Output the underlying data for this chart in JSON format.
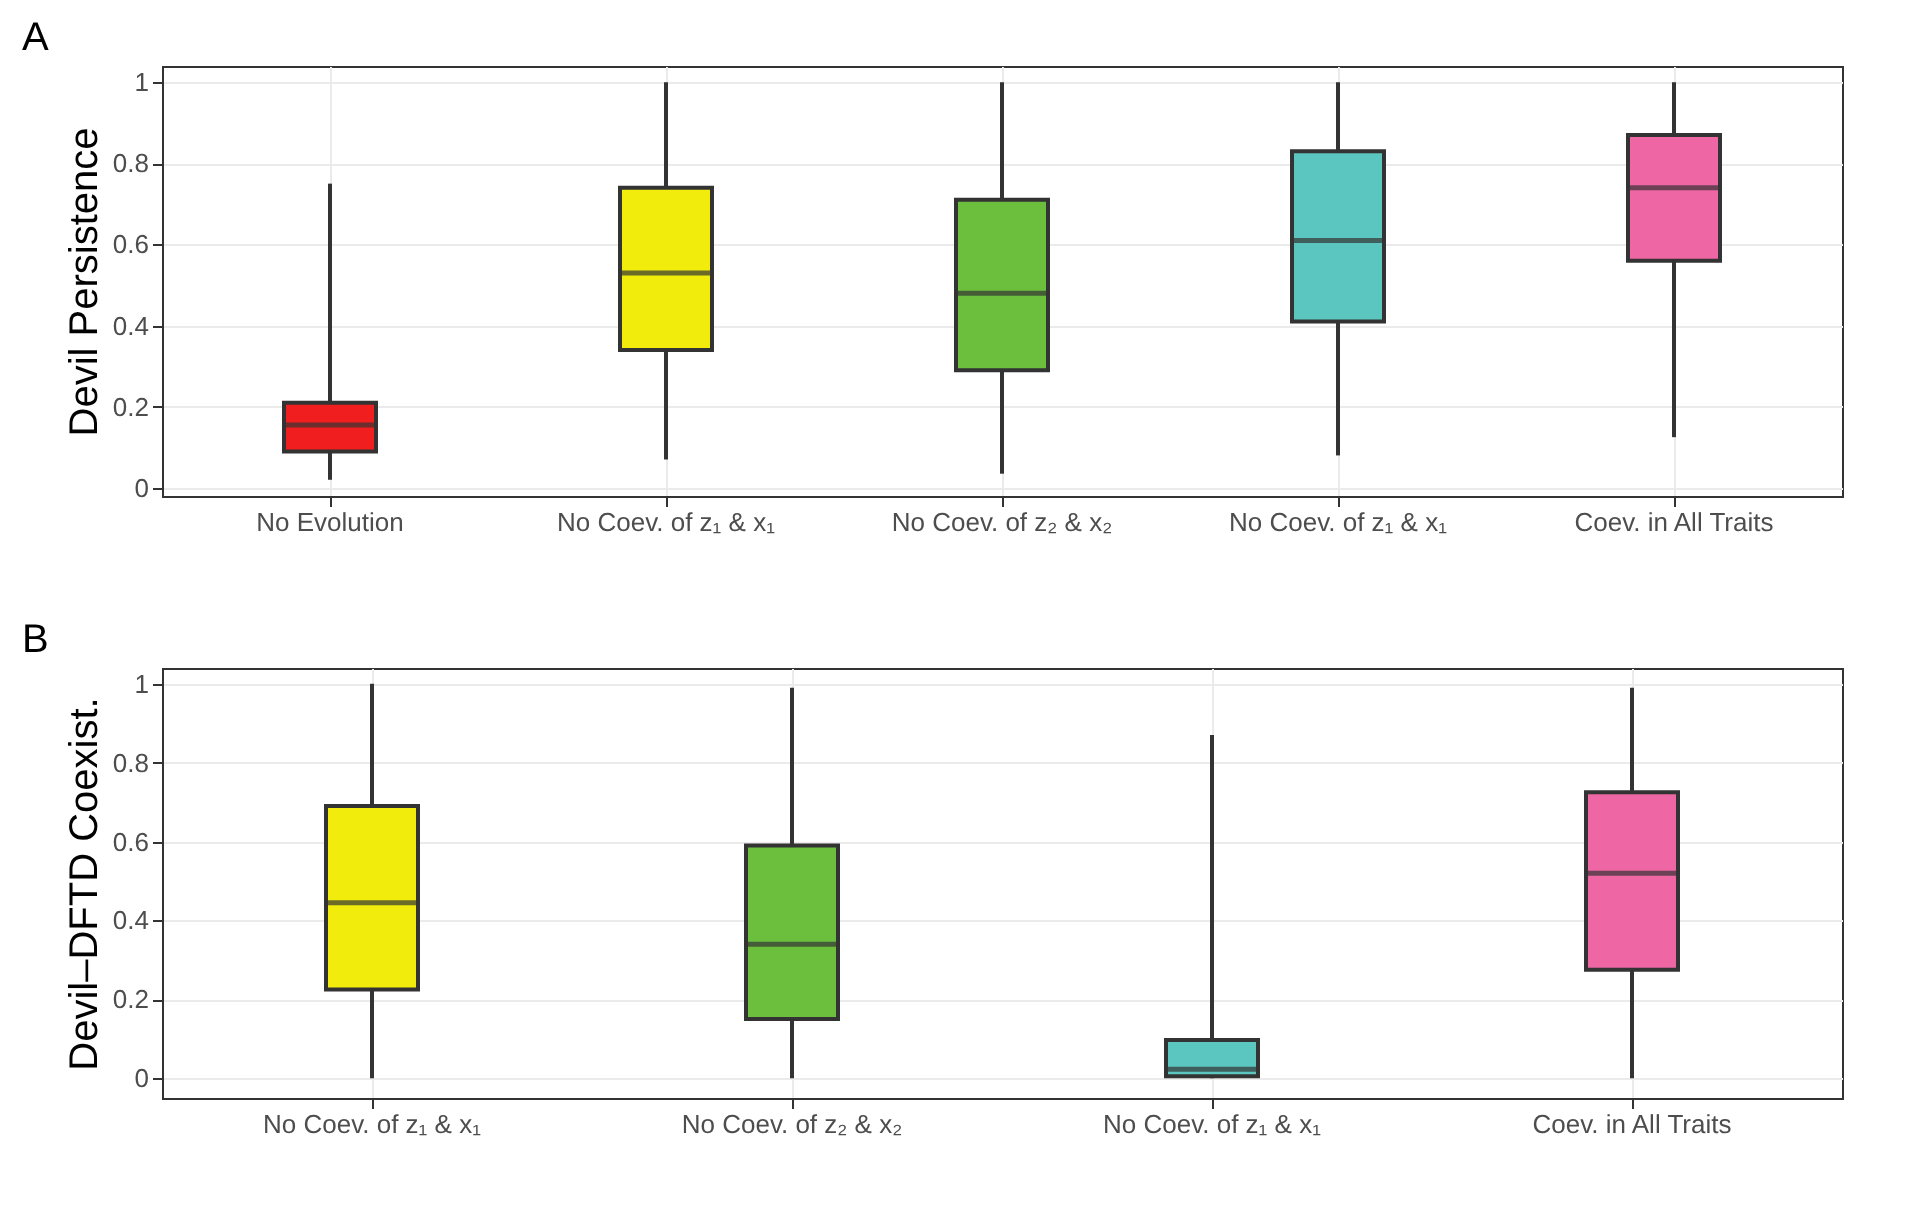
{
  "chart_data": [
    {
      "type": "box",
      "title": "A",
      "ylabel": "Devil Persistence",
      "categories": [
        "No Evolution",
        "No Coev. of z₁ & x₁",
        "No Coev. of z₂ & x₂",
        "No Coev. of z₁ & x₁",
        "Coev. in All Traits"
      ],
      "colors": [
        "#f01e1e",
        "#f2ec0c",
        "#6bbf3c",
        "#5bc5bf",
        "#ee66a3"
      ],
      "boxes": [
        {
          "low": 0.02,
          "q1": 0.09,
          "median": 0.155,
          "q3": 0.21,
          "high": 0.75
        },
        {
          "low": 0.07,
          "q1": 0.34,
          "median": 0.53,
          "q3": 0.74,
          "high": 1
        },
        {
          "low": 0.035,
          "q1": 0.29,
          "median": 0.48,
          "q3": 0.71,
          "high": 1
        },
        {
          "low": 0.08,
          "q1": 0.41,
          "median": 0.61,
          "q3": 0.83,
          "high": 1
        },
        {
          "low": 0.125,
          "q1": 0.56,
          "median": 0.74,
          "q3": 0.87,
          "high": 1
        }
      ],
      "ylim": [
        -0.02,
        1.04
      ],
      "yticks": [
        0,
        0.2,
        0.4,
        0.6,
        0.8,
        1
      ],
      "grid": true
    },
    {
      "type": "box",
      "title": "B",
      "ylabel": "Devil–DFTD Coexist.",
      "categories": [
        "No Coev. of z₁ & x₁",
        "No Coev. of z₂ & x₂",
        "No Coev. of z₁ & x₁",
        "Coev. in All Traits"
      ],
      "colors": [
        "#f2ec0c",
        "#6bbf3c",
        "#5bc5bf",
        "#ee66a3"
      ],
      "boxes": [
        {
          "low": 0,
          "q1": 0.225,
          "median": 0.445,
          "q3": 0.69,
          "high": 1
        },
        {
          "low": 0,
          "q1": 0.15,
          "median": 0.34,
          "q3": 0.59,
          "high": 0.99
        },
        {
          "low": 0,
          "q1": 0.005,
          "median": 0.023,
          "q3": 0.097,
          "high": 0.87
        },
        {
          "low": 0,
          "q1": 0.275,
          "median": 0.52,
          "q3": 0.725,
          "high": 0.99
        }
      ],
      "ylim": [
        -0.05,
        1.04
      ],
      "yticks": [
        0,
        0.2,
        0.4,
        0.6,
        0.8,
        1
      ],
      "grid": true
    }
  ]
}
